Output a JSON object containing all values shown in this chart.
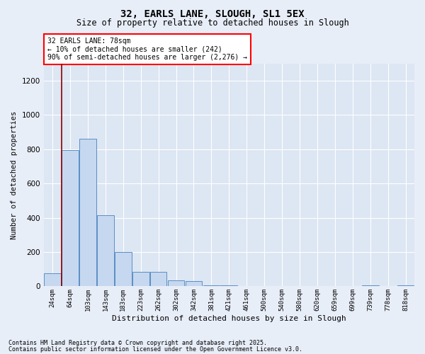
{
  "title_line1": "32, EARLS LANE, SLOUGH, SL1 5EX",
  "title_line2": "Size of property relative to detached houses in Slough",
  "xlabel": "Distribution of detached houses by size in Slough",
  "ylabel": "Number of detached properties",
  "footnote1": "Contains HM Land Registry data © Crown copyright and database right 2025.",
  "footnote2": "Contains public sector information licensed under the Open Government Licence v3.0.",
  "annotation_line1": "32 EARLS LANE: 78sqm",
  "annotation_line2": "← 10% of detached houses are smaller (242)",
  "annotation_line3": "90% of semi-detached houses are larger (2,276) →",
  "bar_color": "#c5d8f0",
  "bar_edge_color": "#5b8ec4",
  "bg_color": "#dde6f3",
  "grid_color": "#ffffff",
  "fig_bg_color": "#e8eef8",
  "red_line_x": 0.5,
  "categories": [
    "24sqm",
    "64sqm",
    "103sqm",
    "143sqm",
    "183sqm",
    "223sqm",
    "262sqm",
    "302sqm",
    "342sqm",
    "381sqm",
    "421sqm",
    "461sqm",
    "500sqm",
    "540sqm",
    "580sqm",
    "620sqm",
    "659sqm",
    "699sqm",
    "739sqm",
    "778sqm",
    "818sqm"
  ],
  "values": [
    75,
    795,
    860,
    415,
    200,
    85,
    85,
    35,
    30,
    5,
    5,
    0,
    0,
    0,
    0,
    0,
    0,
    0,
    5,
    0,
    5
  ],
  "ylim": [
    0,
    1300
  ],
  "yticks": [
    0,
    200,
    400,
    600,
    800,
    1000,
    1200
  ]
}
